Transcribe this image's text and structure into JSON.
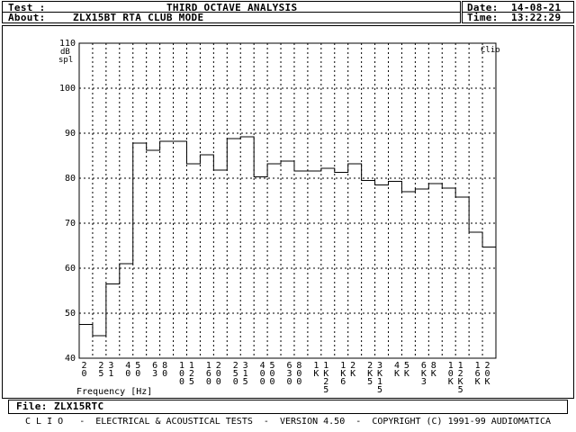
{
  "header": {
    "test_label": "Test :",
    "title": "THIRD OCTAVE ANALYSIS",
    "about_label": "About:",
    "about_value": "ZLX15BT RTA CLUB MODE",
    "date_label": "Date:",
    "date_value": "14-08-21",
    "time_label": "Time:",
    "time_value": "13:22:29"
  },
  "file": {
    "label": "File:",
    "value": "ZLX15RTC"
  },
  "footer": {
    "text": "C L I O   -  ELECTRICAL & ACOUSTICAL TESTS  -  VERSION 4.50  -  COPYRIGHT (C) 1991-99 AUDIOMATICA"
  },
  "chart_data": {
    "type": "bar",
    "style": "step outline",
    "ylabel_lines": [
      "dB",
      "spl"
    ],
    "xlabel": "Frequency [Hz]",
    "corner_label": "Clio",
    "ylim": [
      40,
      110
    ],
    "yticks": [
      40,
      50,
      60,
      70,
      80,
      90,
      100,
      110
    ],
    "grid": true,
    "categories": [
      "20",
      "25",
      "31",
      "40",
      "50",
      "63",
      "80",
      "100",
      "125",
      "160",
      "200",
      "250",
      "315",
      "400",
      "500",
      "630",
      "800",
      "1K",
      "1K25",
      "1K6",
      "2K",
      "2K5",
      "3K15",
      "4K",
      "5K",
      "6K3",
      "8K",
      "10K",
      "12K5",
      "16K",
      "20K"
    ],
    "tick_labels": [
      [
        "2",
        "0"
      ],
      [
        "2",
        "5"
      ],
      [
        "3",
        "1"
      ],
      [
        "4",
        "0"
      ],
      [
        "5",
        "0"
      ],
      [
        "6",
        "3"
      ],
      [
        "8",
        "0"
      ],
      [
        "1",
        "0",
        "0"
      ],
      [
        "1",
        "2",
        "5"
      ],
      [
        "1",
        "6",
        "0"
      ],
      [
        "2",
        "0",
        "0"
      ],
      [
        "2",
        "5",
        "0"
      ],
      [
        "3",
        "1",
        "5"
      ],
      [
        "4",
        "0",
        "0"
      ],
      [
        "5",
        "0",
        "0"
      ],
      [
        "6",
        "3",
        "0"
      ],
      [
        "8",
        "0",
        "0"
      ],
      [
        "1",
        "K"
      ],
      [
        "1",
        "K",
        "2",
        "5"
      ],
      [
        "1",
        "K",
        "6"
      ],
      [
        "2",
        "K"
      ],
      [
        "2",
        "K",
        "5"
      ],
      [
        "3",
        "K",
        "1",
        "5"
      ],
      [
        "4",
        "K"
      ],
      [
        "5",
        "K"
      ],
      [
        "6",
        "K",
        "3"
      ],
      [
        "8",
        "K"
      ],
      [
        "1",
        "0",
        "K"
      ],
      [
        "1",
        "2",
        "K",
        "5"
      ],
      [
        "1",
        "6",
        "K"
      ],
      [
        "2",
        "0",
        "K"
      ]
    ],
    "values": [
      47.5,
      45.0,
      56.5,
      61.0,
      87.8,
      86.2,
      88.2,
      88.2,
      83.2,
      85.2,
      81.8,
      88.8,
      89.2,
      80.3,
      83.2,
      83.8,
      81.6,
      81.6,
      82.2,
      81.3,
      83.2,
      79.5,
      78.5,
      79.3,
      77.0,
      77.6,
      78.8,
      77.8,
      75.8,
      68.0,
      64.7
    ]
  }
}
